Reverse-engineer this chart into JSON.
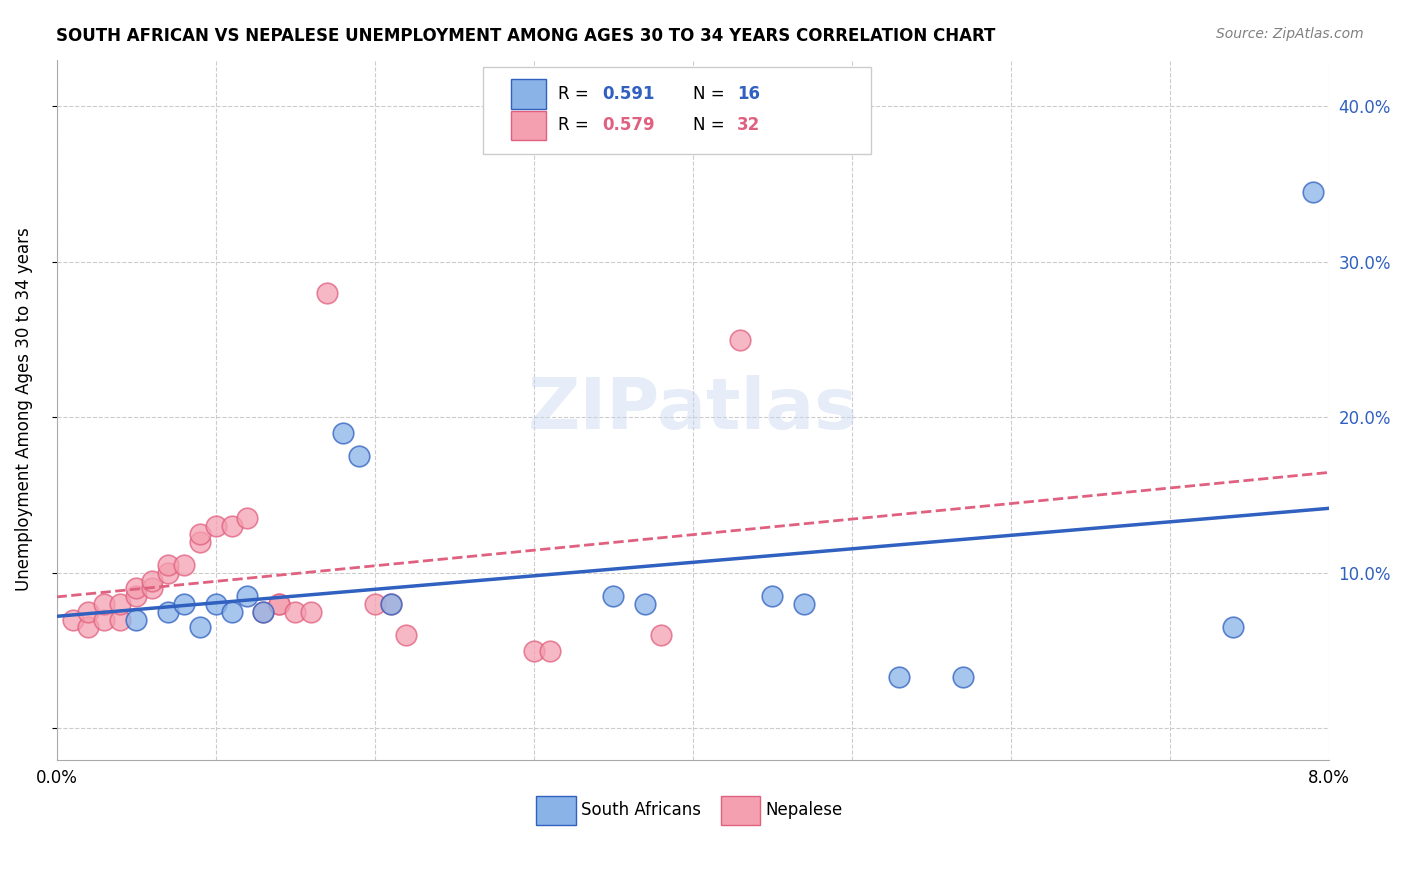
{
  "title": "SOUTH AFRICAN VS NEPALESE UNEMPLOYMENT AMONG AGES 30 TO 34 YEARS CORRELATION CHART",
  "source": "Source: ZipAtlas.com",
  "ylabel": "Unemployment Among Ages 30 to 34 years",
  "xlim": [
    0.0,
    0.08
  ],
  "ylim": [
    -0.02,
    0.43
  ],
  "yticks": [
    0.0,
    0.1,
    0.2,
    0.3,
    0.4
  ],
  "ytick_labels": [
    "",
    "10.0%",
    "20.0%",
    "30.0%",
    "40.0%"
  ],
  "legend_sa": "South Africans",
  "legend_np": "Nepalese",
  "color_sa": "#8ab4e8",
  "color_np": "#f4a0b0",
  "color_line_sa": "#3060c0",
  "color_line_np": "#e06080",
  "color_r_sa": "#3060c0",
  "color_n_sa": "#3060c0",
  "color_r_np": "#e06080",
  "color_n_np": "#e06080",
  "color_yticks": "#3060c0",
  "watermark": "ZIPatlas",
  "sa_x": [
    0.005,
    0.007,
    0.008,
    0.009,
    0.01,
    0.011,
    0.012,
    0.013,
    0.018,
    0.019,
    0.021,
    0.035,
    0.037,
    0.045,
    0.047,
    0.053,
    0.057,
    0.074,
    0.079
  ],
  "sa_y": [
    0.07,
    0.075,
    0.08,
    0.065,
    0.08,
    0.075,
    0.085,
    0.075,
    0.19,
    0.175,
    0.08,
    0.085,
    0.08,
    0.085,
    0.08,
    0.033,
    0.033,
    0.065,
    0.345
  ],
  "np_x": [
    0.001,
    0.002,
    0.002,
    0.003,
    0.003,
    0.004,
    0.004,
    0.005,
    0.005,
    0.006,
    0.006,
    0.007,
    0.007,
    0.008,
    0.009,
    0.009,
    0.01,
    0.011,
    0.012,
    0.013,
    0.014,
    0.014,
    0.015,
    0.016,
    0.017,
    0.02,
    0.021,
    0.022,
    0.03,
    0.031,
    0.038,
    0.043
  ],
  "np_y": [
    0.07,
    0.065,
    0.075,
    0.07,
    0.08,
    0.07,
    0.08,
    0.085,
    0.09,
    0.09,
    0.095,
    0.1,
    0.105,
    0.105,
    0.12,
    0.125,
    0.13,
    0.13,
    0.135,
    0.075,
    0.08,
    0.08,
    0.075,
    0.075,
    0.28,
    0.08,
    0.08,
    0.06,
    0.05,
    0.05,
    0.06,
    0.25
  ],
  "background_color": "#ffffff",
  "grid_color": "#cccccc"
}
